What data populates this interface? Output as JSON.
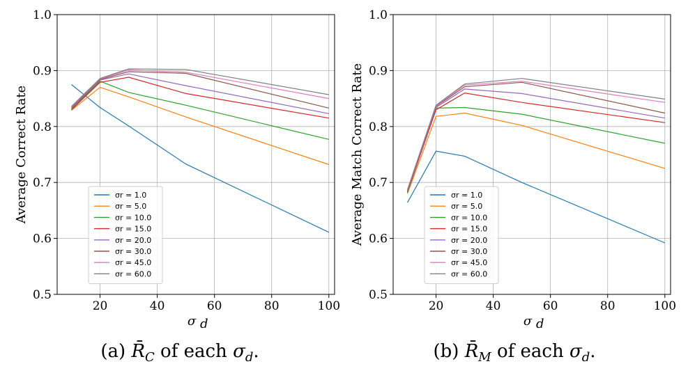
{
  "chart_data": [
    {
      "type": "line",
      "caption_prefix": "(a) ",
      "caption_symbol": "R̄",
      "caption_sub": "C",
      "caption_mid": " of each ",
      "caption_sigma": "σ",
      "caption_sigma_sub": "d",
      "caption_end": ".",
      "xlabel": "σ",
      "xlabel_sub": "d",
      "ylabel": "Average Correct Rate",
      "xlim": [
        5,
        102
      ],
      "ylim": [
        0.5,
        1.0
      ],
      "xticks": [
        20,
        40,
        60,
        80,
        100
      ],
      "xtick_labels": [
        "20",
        "40",
        "60",
        "80",
        "100"
      ],
      "yticks": [
        0.5,
        0.6,
        0.7,
        0.8,
        0.9,
        1.0
      ],
      "ytick_labels": [
        "0.5",
        "0.6",
        "0.7",
        "0.8",
        "0.9",
        "1.0"
      ],
      "grid": true,
      "legend": "lower-left",
      "x": [
        10,
        20,
        30,
        50,
        100
      ],
      "series": [
        {
          "name": "σr = 1.0",
          "color": "#1f77b4",
          "values": [
            0.875,
            0.834,
            0.801,
            0.733,
            0.611
          ]
        },
        {
          "name": "σr = 5.0",
          "color": "#ff7f0e",
          "values": [
            0.829,
            0.87,
            0.853,
            0.817,
            0.732
          ]
        },
        {
          "name": "σr = 10.0",
          "color": "#2ca02c",
          "values": [
            0.831,
            0.881,
            0.861,
            0.838,
            0.777
          ]
        },
        {
          "name": "σr = 15.0",
          "color": "#d62728",
          "values": [
            0.83,
            0.879,
            0.888,
            0.859,
            0.815
          ]
        },
        {
          "name": "σr = 20.0",
          "color": "#9467bd",
          "values": [
            0.833,
            0.883,
            0.894,
            0.873,
            0.823
          ]
        },
        {
          "name": "σr = 30.0",
          "color": "#8c564b",
          "values": [
            0.834,
            0.884,
            0.898,
            0.895,
            0.833
          ]
        },
        {
          "name": "σr = 45.0",
          "color": "#e377c2",
          "values": [
            0.835,
            0.885,
            0.901,
            0.897,
            0.85
          ]
        },
        {
          "name": "σr = 60.0",
          "color": "#7f7f7f",
          "values": [
            0.836,
            0.886,
            0.903,
            0.902,
            0.857
          ]
        }
      ]
    },
    {
      "type": "line",
      "caption_prefix": "(b) ",
      "caption_symbol": "R̄",
      "caption_sub": "M",
      "caption_mid": " of each ",
      "caption_sigma": "σ",
      "caption_sigma_sub": "d",
      "caption_end": ".",
      "xlabel": "σ",
      "xlabel_sub": "d",
      "ylabel": "Average Match Correct Rate",
      "xlim": [
        5,
        102
      ],
      "ylim": [
        0.5,
        1.0
      ],
      "xticks": [
        20,
        40,
        60,
        80,
        100
      ],
      "xtick_labels": [
        "20",
        "40",
        "60",
        "80",
        "100"
      ],
      "yticks": [
        0.5,
        0.6,
        0.7,
        0.8,
        0.9,
        1.0
      ],
      "ytick_labels": [
        "0.5",
        "0.6",
        "0.7",
        "0.8",
        "0.9",
        "1.0"
      ],
      "grid": true,
      "legend": "lower-left",
      "x": [
        10,
        20,
        30,
        50,
        100
      ],
      "series": [
        {
          "name": "σr = 1.0",
          "color": "#1f77b4",
          "values": [
            0.664,
            0.756,
            0.747,
            0.7,
            0.592
          ]
        },
        {
          "name": "σr = 5.0",
          "color": "#ff7f0e",
          "values": [
            0.68,
            0.818,
            0.824,
            0.802,
            0.725
          ]
        },
        {
          "name": "σr = 10.0",
          "color": "#2ca02c",
          "values": [
            0.682,
            0.833,
            0.834,
            0.822,
            0.77
          ]
        },
        {
          "name": "σr = 15.0",
          "color": "#d62728",
          "values": [
            0.683,
            0.83,
            0.86,
            0.843,
            0.807
          ]
        },
        {
          "name": "σr = 20.0",
          "color": "#9467bd",
          "values": [
            0.684,
            0.834,
            0.867,
            0.859,
            0.815
          ]
        },
        {
          "name": "σr = 30.0",
          "color": "#8c564b",
          "values": [
            0.685,
            0.836,
            0.871,
            0.879,
            0.824
          ]
        },
        {
          "name": "σr = 45.0",
          "color": "#e377c2",
          "values": [
            0.686,
            0.837,
            0.874,
            0.881,
            0.843
          ]
        },
        {
          "name": "σr = 60.0",
          "color": "#7f7f7f",
          "values": [
            0.687,
            0.838,
            0.876,
            0.886,
            0.849
          ]
        }
      ]
    }
  ]
}
